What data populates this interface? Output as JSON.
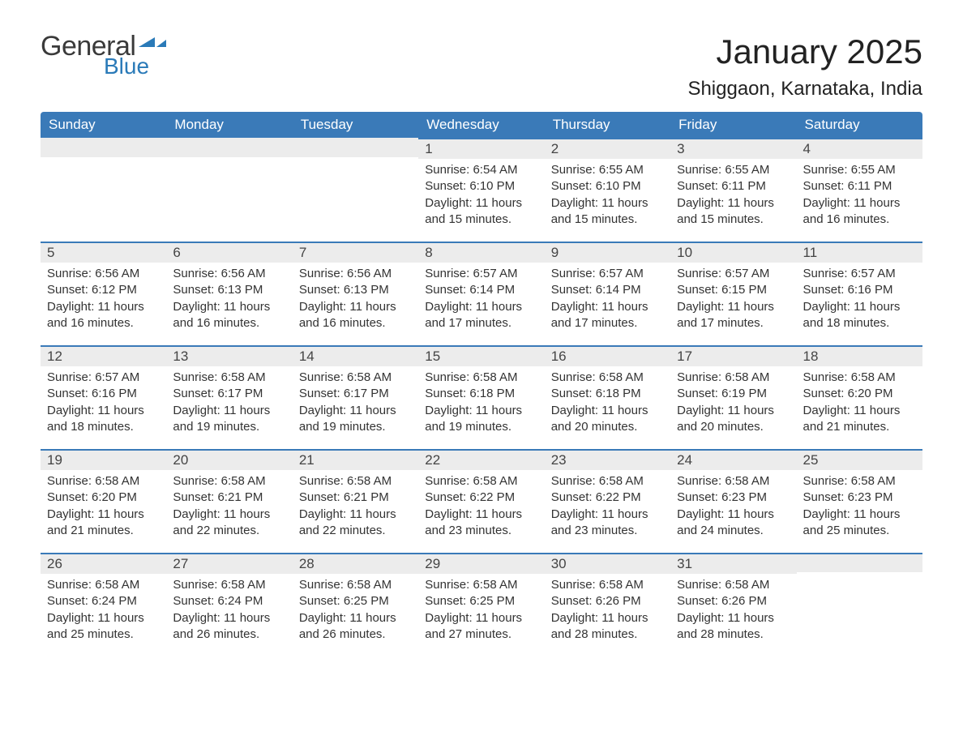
{
  "brand": {
    "word1": "General",
    "word2": "Blue",
    "word1_color": "#3a3a3a",
    "word2_color": "#2a7ab8"
  },
  "title": "January 2025",
  "location": "Shiggaon, Karnataka, India",
  "colors": {
    "header_bg": "#3a7ab8",
    "header_text": "#ffffff",
    "daynum_bg": "#ececec",
    "row_divider": "#3a7ab8",
    "body_text": "#333333",
    "page_bg": "#ffffff"
  },
  "font": {
    "family": "Arial",
    "title_size_pt": 32,
    "location_size_pt": 18,
    "header_size_pt": 13,
    "body_size_pt": 11
  },
  "weekdays": [
    "Sunday",
    "Monday",
    "Tuesday",
    "Wednesday",
    "Thursday",
    "Friday",
    "Saturday"
  ],
  "grid": {
    "rows": 5,
    "cols": 7,
    "first_day_of_month_weekday_index": 3,
    "days_in_month": 31
  },
  "days": {
    "1": {
      "sunrise": "6:54 AM",
      "sunset": "6:10 PM",
      "daylight": "11 hours and 15 minutes."
    },
    "2": {
      "sunrise": "6:55 AM",
      "sunset": "6:10 PM",
      "daylight": "11 hours and 15 minutes."
    },
    "3": {
      "sunrise": "6:55 AM",
      "sunset": "6:11 PM",
      "daylight": "11 hours and 15 minutes."
    },
    "4": {
      "sunrise": "6:55 AM",
      "sunset": "6:11 PM",
      "daylight": "11 hours and 16 minutes."
    },
    "5": {
      "sunrise": "6:56 AM",
      "sunset": "6:12 PM",
      "daylight": "11 hours and 16 minutes."
    },
    "6": {
      "sunrise": "6:56 AM",
      "sunset": "6:13 PM",
      "daylight": "11 hours and 16 minutes."
    },
    "7": {
      "sunrise": "6:56 AM",
      "sunset": "6:13 PM",
      "daylight": "11 hours and 16 minutes."
    },
    "8": {
      "sunrise": "6:57 AM",
      "sunset": "6:14 PM",
      "daylight": "11 hours and 17 minutes."
    },
    "9": {
      "sunrise": "6:57 AM",
      "sunset": "6:14 PM",
      "daylight": "11 hours and 17 minutes."
    },
    "10": {
      "sunrise": "6:57 AM",
      "sunset": "6:15 PM",
      "daylight": "11 hours and 17 minutes."
    },
    "11": {
      "sunrise": "6:57 AM",
      "sunset": "6:16 PM",
      "daylight": "11 hours and 18 minutes."
    },
    "12": {
      "sunrise": "6:57 AM",
      "sunset": "6:16 PM",
      "daylight": "11 hours and 18 minutes."
    },
    "13": {
      "sunrise": "6:58 AM",
      "sunset": "6:17 PM",
      "daylight": "11 hours and 19 minutes."
    },
    "14": {
      "sunrise": "6:58 AM",
      "sunset": "6:17 PM",
      "daylight": "11 hours and 19 minutes."
    },
    "15": {
      "sunrise": "6:58 AM",
      "sunset": "6:18 PM",
      "daylight": "11 hours and 19 minutes."
    },
    "16": {
      "sunrise": "6:58 AM",
      "sunset": "6:18 PM",
      "daylight": "11 hours and 20 minutes."
    },
    "17": {
      "sunrise": "6:58 AM",
      "sunset": "6:19 PM",
      "daylight": "11 hours and 20 minutes."
    },
    "18": {
      "sunrise": "6:58 AM",
      "sunset": "6:20 PM",
      "daylight": "11 hours and 21 minutes."
    },
    "19": {
      "sunrise": "6:58 AM",
      "sunset": "6:20 PM",
      "daylight": "11 hours and 21 minutes."
    },
    "20": {
      "sunrise": "6:58 AM",
      "sunset": "6:21 PM",
      "daylight": "11 hours and 22 minutes."
    },
    "21": {
      "sunrise": "6:58 AM",
      "sunset": "6:21 PM",
      "daylight": "11 hours and 22 minutes."
    },
    "22": {
      "sunrise": "6:58 AM",
      "sunset": "6:22 PM",
      "daylight": "11 hours and 23 minutes."
    },
    "23": {
      "sunrise": "6:58 AM",
      "sunset": "6:22 PM",
      "daylight": "11 hours and 23 minutes."
    },
    "24": {
      "sunrise": "6:58 AM",
      "sunset": "6:23 PM",
      "daylight": "11 hours and 24 minutes."
    },
    "25": {
      "sunrise": "6:58 AM",
      "sunset": "6:23 PM",
      "daylight": "11 hours and 25 minutes."
    },
    "26": {
      "sunrise": "6:58 AM",
      "sunset": "6:24 PM",
      "daylight": "11 hours and 25 minutes."
    },
    "27": {
      "sunrise": "6:58 AM",
      "sunset": "6:24 PM",
      "daylight": "11 hours and 26 minutes."
    },
    "28": {
      "sunrise": "6:58 AM",
      "sunset": "6:25 PM",
      "daylight": "11 hours and 26 minutes."
    },
    "29": {
      "sunrise": "6:58 AM",
      "sunset": "6:25 PM",
      "daylight": "11 hours and 27 minutes."
    },
    "30": {
      "sunrise": "6:58 AM",
      "sunset": "6:26 PM",
      "daylight": "11 hours and 28 minutes."
    },
    "31": {
      "sunrise": "6:58 AM",
      "sunset": "6:26 PM",
      "daylight": "11 hours and 28 minutes."
    }
  },
  "labels": {
    "sunrise": "Sunrise:",
    "sunset": "Sunset:",
    "daylight": "Daylight:"
  }
}
